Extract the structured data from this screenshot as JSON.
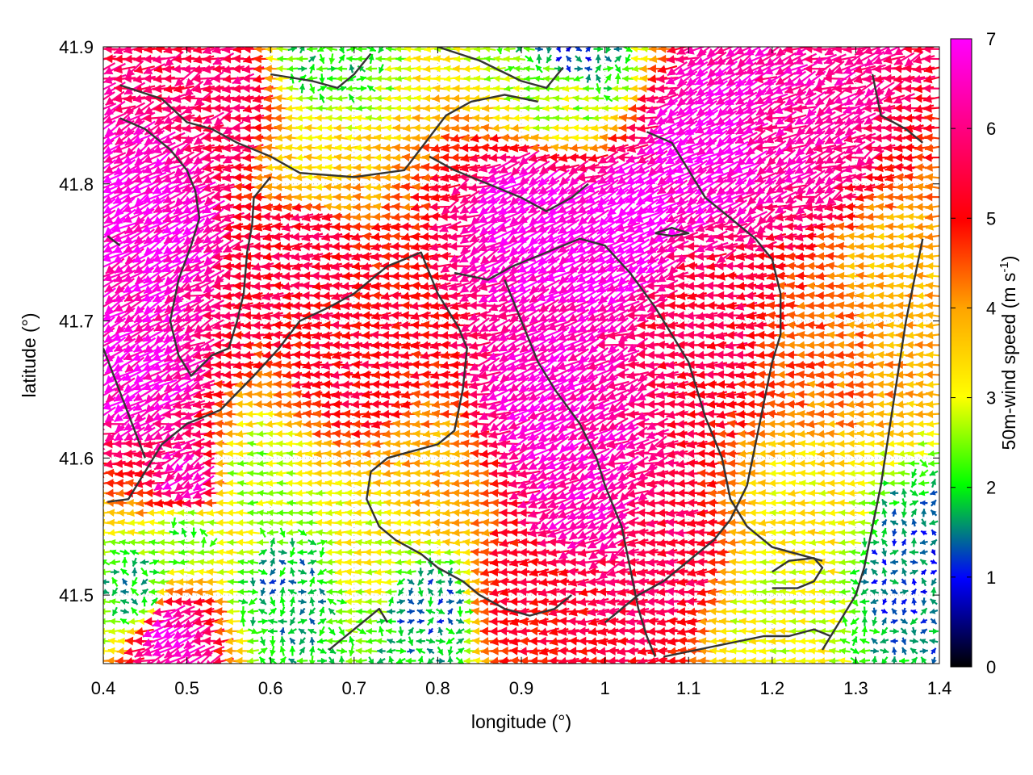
{
  "chart_data": {
    "type": "vector_field",
    "xlabel": "longitude (°)",
    "ylabel": "latitude (°)",
    "xlim": [
      0.4,
      1.4
    ],
    "ylim": [
      41.45,
      41.9
    ],
    "x_ticks": [
      "0.4",
      "0.5",
      "0.6",
      "0.7",
      "0.8",
      "0.9",
      "1",
      "1.1",
      "1.2",
      "1.3",
      "1.4"
    ],
    "y_ticks": [
      "41.5",
      "41.6",
      "41.7",
      "41.8",
      "41.9"
    ],
    "colorbar": {
      "label_main": "50m-wind speed (m s",
      "label_sup": "-1",
      "label_end": ")",
      "range": [
        0,
        7
      ],
      "ticks": [
        "0",
        "1",
        "2",
        "3",
        "4",
        "5",
        "6",
        "7"
      ],
      "colors": [
        "#000000",
        "#0000ff",
        "#00ff00",
        "#ffff00",
        "#ffa500",
        "#ff0000",
        "#ff00ff"
      ]
    },
    "grid": true,
    "wind_direction": "predominantly easterly (arrows point west)",
    "speed_regions": [
      {
        "lon": 0.47,
        "lat": 41.78,
        "speed": 6.8
      },
      {
        "lon": 0.45,
        "lat": 41.66,
        "speed": 6.7
      },
      {
        "lon": 0.5,
        "lat": 41.58,
        "speed": 6.5
      },
      {
        "lon": 0.48,
        "lat": 41.47,
        "speed": 6.6
      },
      {
        "lon": 0.92,
        "lat": 41.78,
        "speed": 6.9
      },
      {
        "lon": 1.02,
        "lat": 41.77,
        "speed": 7.0
      },
      {
        "lon": 1.12,
        "lat": 41.83,
        "speed": 6.9
      },
      {
        "lon": 0.93,
        "lat": 41.64,
        "speed": 6.6
      },
      {
        "lon": 0.97,
        "lat": 41.58,
        "speed": 6.5
      },
      {
        "lon": 1.23,
        "lat": 41.84,
        "speed": 6.3
      },
      {
        "lon": 0.55,
        "lat": 41.86,
        "speed": 5.8
      },
      {
        "lon": 0.64,
        "lat": 41.76,
        "speed": 5.5
      },
      {
        "lon": 0.7,
        "lat": 41.67,
        "speed": 5.3
      },
      {
        "lon": 1.12,
        "lat": 41.7,
        "speed": 5.5
      },
      {
        "lon": 1.07,
        "lat": 41.52,
        "speed": 5.6
      },
      {
        "lon": 0.9,
        "lat": 41.5,
        "speed": 5.2
      },
      {
        "lon": 1.27,
        "lat": 41.68,
        "speed": 4.4
      },
      {
        "lon": 1.35,
        "lat": 41.72,
        "speed": 3.8
      },
      {
        "lon": 1.25,
        "lat": 41.55,
        "speed": 3.2
      },
      {
        "lon": 1.2,
        "lat": 41.48,
        "speed": 3.0
      },
      {
        "lon": 0.8,
        "lat": 41.58,
        "speed": 3.9
      },
      {
        "lon": 0.72,
        "lat": 41.53,
        "speed": 3.0
      },
      {
        "lon": 0.58,
        "lat": 41.58,
        "speed": 2.6
      },
      {
        "lon": 0.5,
        "lat": 41.55,
        "speed": 2.2
      },
      {
        "lon": 0.44,
        "lat": 41.5,
        "speed": 1.8
      },
      {
        "lon": 0.62,
        "lat": 41.5,
        "speed": 1.6
      },
      {
        "lon": 0.79,
        "lat": 41.49,
        "speed": 1.5
      },
      {
        "lon": 0.95,
        "lat": 41.87,
        "speed": 2.8
      },
      {
        "lon": 0.65,
        "lat": 41.81,
        "speed": 3.4
      },
      {
        "lon": 1.36,
        "lat": 41.52,
        "speed": 1.3
      },
      {
        "lon": 0.96,
        "lat": 41.89,
        "speed": 1.2
      },
      {
        "lon": 0.66,
        "lat": 41.89,
        "speed": 2.0
      }
    ],
    "contours": [
      [
        [
          0.42,
          41.872
        ],
        [
          0.47,
          41.862
        ],
        [
          0.5,
          41.845
        ],
        [
          0.53,
          41.84
        ],
        [
          0.56,
          41.83
        ],
        [
          0.6,
          41.82
        ],
        [
          0.635,
          41.808
        ],
        [
          0.7,
          41.805
        ],
        [
          0.76,
          41.81
        ],
        [
          0.785,
          41.83
        ],
        [
          0.81,
          41.85
        ],
        [
          0.84,
          41.86
        ],
        [
          0.88,
          41.865
        ],
        [
          0.92,
          41.86
        ]
      ],
      [
        [
          0.42,
          41.848
        ],
        [
          0.45,
          41.84
        ],
        [
          0.48,
          41.825
        ],
        [
          0.5,
          41.81
        ],
        [
          0.51,
          41.795
        ],
        [
          0.515,
          41.775
        ],
        [
          0.505,
          41.755
        ],
        [
          0.49,
          41.73
        ],
        [
          0.48,
          41.7
        ],
        [
          0.49,
          41.675
        ],
        [
          0.505,
          41.66
        ],
        [
          0.53,
          41.675
        ],
        [
          0.55,
          41.68
        ],
        [
          0.56,
          41.7
        ],
        [
          0.568,
          41.72
        ],
        [
          0.572,
          41.75
        ],
        [
          0.578,
          41.77
        ],
        [
          0.58,
          41.79
        ],
        [
          0.6,
          41.805
        ]
      ],
      [
        [
          0.405,
          41.762
        ],
        [
          0.42,
          41.755
        ]
      ],
      [
        [
          0.405,
          41.568
        ],
        [
          0.43,
          41.57
        ],
        [
          0.45,
          41.59
        ],
        [
          0.47,
          41.61
        ],
        [
          0.5,
          41.625
        ],
        [
          0.54,
          41.635
        ],
        [
          0.58,
          41.66
        ],
        [
          0.61,
          41.68
        ],
        [
          0.635,
          41.7
        ],
        [
          0.67,
          41.71
        ],
        [
          0.7,
          41.72
        ],
        [
          0.74,
          41.74
        ],
        [
          0.76,
          41.745
        ],
        [
          0.78,
          41.75
        ],
        [
          0.8,
          41.72
        ],
        [
          0.825,
          41.695
        ],
        [
          0.835,
          41.68
        ],
        [
          0.83,
          41.65
        ],
        [
          0.82,
          41.62
        ],
        [
          0.8,
          41.61
        ],
        [
          0.77,
          41.605
        ],
        [
          0.74,
          41.6
        ],
        [
          0.72,
          41.59
        ],
        [
          0.715,
          41.57
        ],
        [
          0.73,
          41.55
        ],
        [
          0.75,
          41.54
        ],
        [
          0.78,
          41.53
        ],
        [
          0.8,
          41.52
        ],
        [
          0.83,
          41.51
        ],
        [
          0.85,
          41.5
        ],
        [
          0.88,
          41.49
        ],
        [
          0.91,
          41.485
        ],
        [
          0.94,
          41.49
        ],
        [
          0.96,
          41.5
        ]
      ],
      [
        [
          0.4,
          41.68
        ],
        [
          0.45,
          41.6
        ]
      ],
      [
        [
          0.6,
          41.88
        ],
        [
          0.65,
          41.875
        ],
        [
          0.68,
          41.87
        ],
        [
          0.7,
          41.88
        ],
        [
          0.72,
          41.895
        ]
      ],
      [
        [
          0.8,
          41.9
        ],
        [
          0.85,
          41.89
        ],
        [
          0.9,
          41.875
        ],
        [
          0.93,
          41.87
        ],
        [
          0.95,
          41.885
        ]
      ],
      [
        [
          0.79,
          41.82
        ],
        [
          0.82,
          41.81
        ],
        [
          0.86,
          41.8
        ],
        [
          0.9,
          41.79
        ],
        [
          0.93,
          41.78
        ],
        [
          0.96,
          41.79
        ],
        [
          0.98,
          41.8
        ]
      ],
      [
        [
          0.82,
          41.735
        ],
        [
          0.86,
          41.73
        ],
        [
          0.89,
          41.74
        ],
        [
          0.93,
          41.75
        ],
        [
          0.97,
          41.76
        ],
        [
          1.0,
          41.755
        ],
        [
          1.03,
          41.735
        ],
        [
          1.06,
          41.71
        ],
        [
          1.08,
          41.69
        ],
        [
          1.1,
          41.67
        ],
        [
          1.12,
          41.63
        ],
        [
          1.14,
          41.6
        ],
        [
          1.15,
          41.57
        ],
        [
          1.17,
          41.55
        ],
        [
          1.2,
          41.535
        ],
        [
          1.23,
          41.53
        ],
        [
          1.26,
          41.525
        ]
      ],
      [
        [
          0.88,
          41.73
        ],
        [
          0.9,
          41.7
        ],
        [
          0.92,
          41.67
        ],
        [
          0.94,
          41.65
        ],
        [
          0.97,
          41.625
        ],
        [
          0.99,
          41.6
        ],
        [
          1.0,
          41.58
        ],
        [
          1.02,
          41.55
        ],
        [
          1.03,
          41.52
        ],
        [
          1.04,
          41.49
        ],
        [
          1.05,
          41.47
        ],
        [
          1.06,
          41.455
        ]
      ],
      [
        [
          1.05,
          41.838
        ],
        [
          1.08,
          41.83
        ],
        [
          1.1,
          41.81
        ],
        [
          1.12,
          41.79
        ],
        [
          1.14,
          41.78
        ],
        [
          1.16,
          41.77
        ],
        [
          1.18,
          41.76
        ],
        [
          1.2,
          41.745
        ],
        [
          1.21,
          41.72
        ],
        [
          1.21,
          41.69
        ],
        [
          1.2,
          41.67
        ],
        [
          1.19,
          41.64
        ],
        [
          1.18,
          41.61
        ],
        [
          1.17,
          41.58
        ],
        [
          1.15,
          41.555
        ],
        [
          1.13,
          41.54
        ],
        [
          1.1,
          41.525
        ],
        [
          1.07,
          41.51
        ],
        [
          1.04,
          41.5
        ],
        [
          1.02,
          41.49
        ],
        [
          1.0,
          41.48
        ]
      ],
      [
        [
          1.06,
          41.764
        ],
        [
          1.08,
          41.762
        ],
        [
          1.1,
          41.764
        ],
        [
          1.08,
          41.768
        ],
        [
          1.06,
          41.764
        ]
      ],
      [
        [
          1.32,
          41.88
        ],
        [
          1.33,
          41.85
        ],
        [
          1.36,
          41.84
        ],
        [
          1.38,
          41.83
        ]
      ],
      [
        [
          1.26,
          41.46
        ],
        [
          1.28,
          41.48
        ],
        [
          1.3,
          41.5
        ],
        [
          1.31,
          41.52
        ],
        [
          1.32,
          41.55
        ],
        [
          1.33,
          41.58
        ],
        [
          1.34,
          41.62
        ],
        [
          1.35,
          41.66
        ],
        [
          1.36,
          41.7
        ],
        [
          1.37,
          41.73
        ],
        [
          1.38,
          41.76
        ]
      ],
      [
        [
          1.2,
          41.505
        ],
        [
          1.23,
          41.505
        ],
        [
          1.25,
          41.51
        ],
        [
          1.26,
          41.52
        ],
        [
          1.25,
          41.527
        ],
        [
          1.22,
          41.525
        ],
        [
          1.2,
          41.517
        ]
      ],
      [
        [
          1.07,
          41.455
        ],
        [
          1.11,
          41.46
        ],
        [
          1.15,
          41.465
        ],
        [
          1.19,
          41.47
        ],
        [
          1.22,
          41.47
        ],
        [
          1.25,
          41.475
        ],
        [
          1.27,
          41.47
        ]
      ],
      [
        [
          0.67,
          41.46
        ],
        [
          0.69,
          41.47
        ],
        [
          0.71,
          41.48
        ],
        [
          0.73,
          41.49
        ],
        [
          0.74,
          41.48
        ]
      ]
    ]
  }
}
